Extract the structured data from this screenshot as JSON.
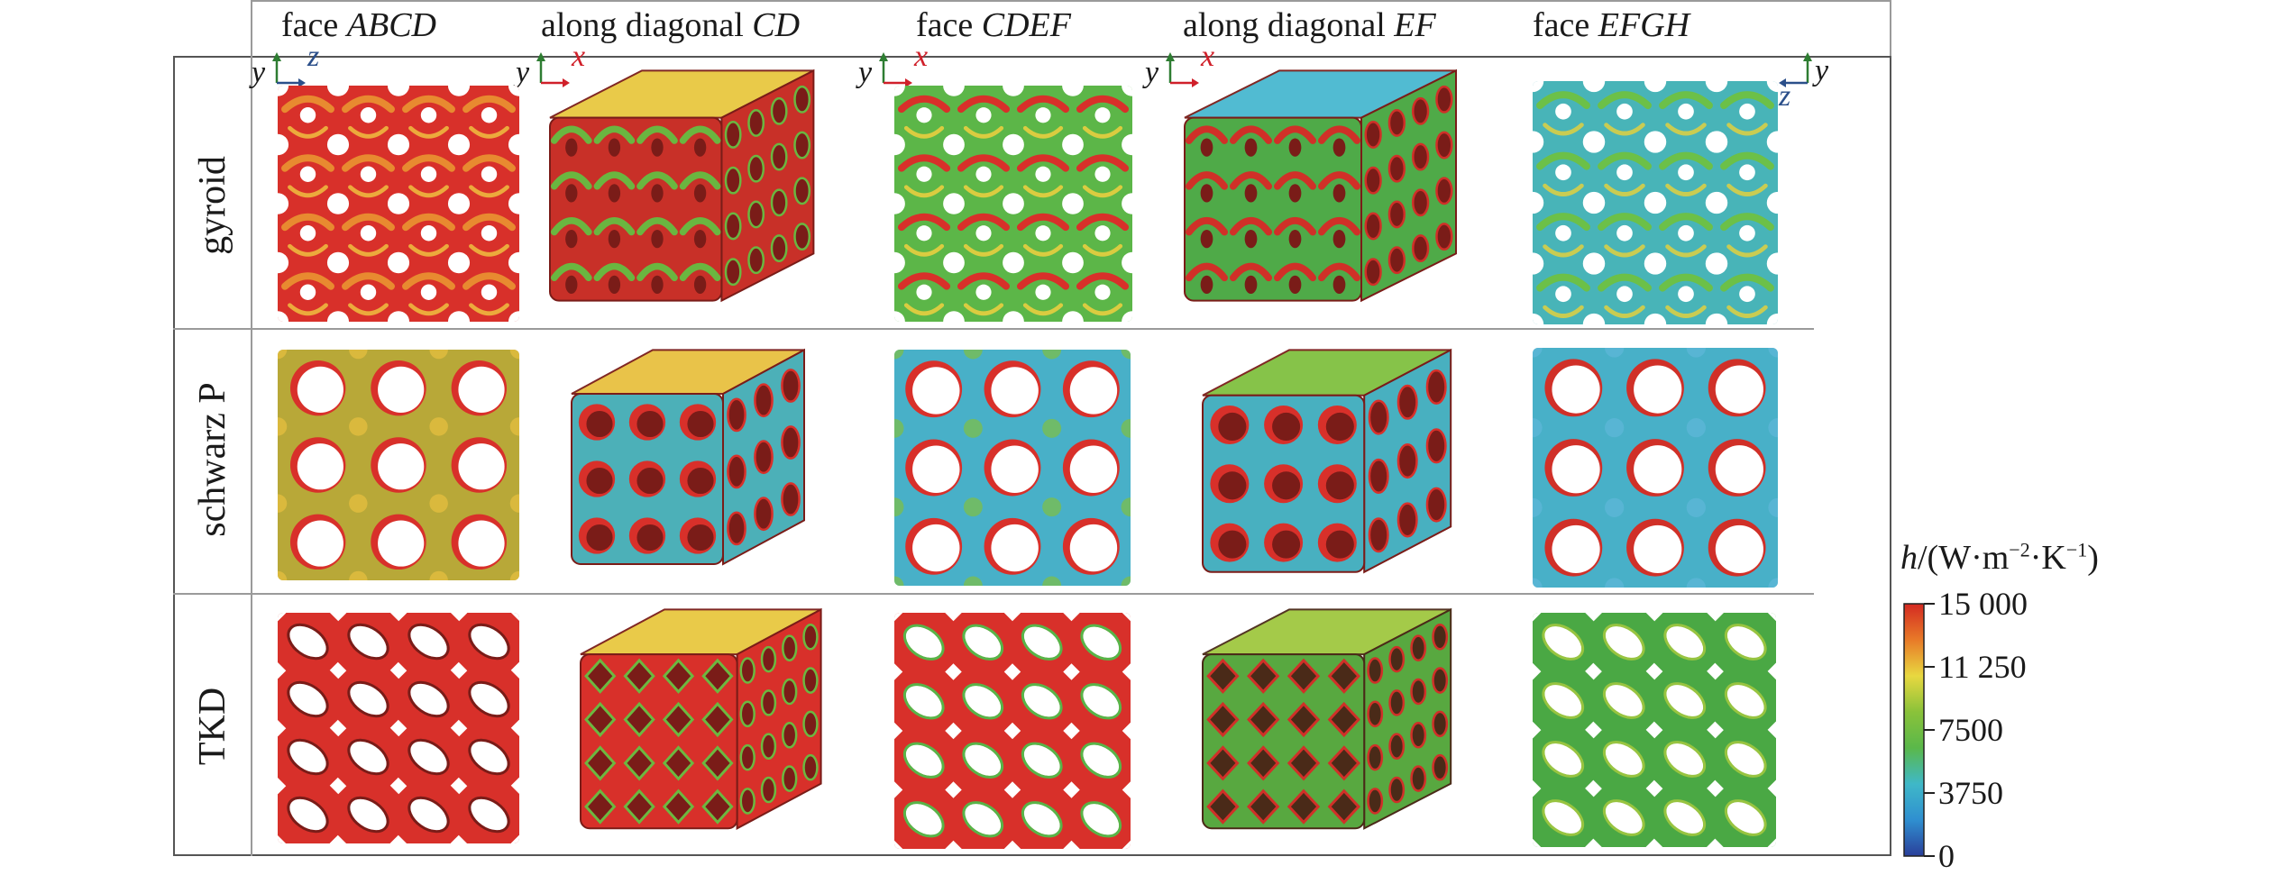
{
  "columns": [
    {
      "prefix": "face ",
      "emph": "ABCD"
    },
    {
      "prefix": "along diagonal ",
      "emph": "CD"
    },
    {
      "prefix": "face ",
      "emph": "CDEF"
    },
    {
      "prefix": "along diagonal ",
      "emph": "EF"
    },
    {
      "prefix": "face ",
      "emph": "EFGH"
    }
  ],
  "rows": [
    {
      "label": "gyroid"
    },
    {
      "label": "schwarz P"
    },
    {
      "label": "TKD"
    }
  ],
  "axes": [
    {
      "v": "y",
      "h": "z",
      "hColor": "#2b4f8a"
    },
    {
      "v": "y",
      "h": "x",
      "hColor": "#d0202a"
    },
    {
      "v": "y",
      "h": "x",
      "hColor": "#d0202a"
    },
    {
      "v": "y",
      "h": "x",
      "hColor": "#d0202a"
    },
    {
      "v": "y",
      "h": "z",
      "hColor": "#2b4f8a"
    }
  ],
  "colorbar": {
    "title": "h/(W·m⁻²·K⁻¹)",
    "title_var": "h",
    "title_rest_1": "/(W·m",
    "title_sup_1": "−2",
    "title_rest_2": "·K",
    "title_sup_2": "−1",
    "title_rest_3": ")",
    "min": 0,
    "max": 15000,
    "ticks": [
      {
        "value": 15000,
        "label": "15 000"
      },
      {
        "value": 11250,
        "label": "11 250"
      },
      {
        "value": 7500,
        "label": "7500"
      },
      {
        "value": 3750,
        "label": "3750"
      },
      {
        "value": 0,
        "label": "0"
      }
    ],
    "colors": [
      "#2a3f9a",
      "#2f8fd0",
      "#3fb8c8",
      "#5ab84a",
      "#8ac23a",
      "#e8d840",
      "#e87a28",
      "#d42a22"
    ]
  },
  "cell_colors": [
    [
      {
        "base": "#d8302a",
        "accent": "#e88a30",
        "hole": "#ffffff",
        "light": "#f0c040"
      },
      {
        "base": "#c83028",
        "accent": "#6ab640",
        "hole": "#7a1c18",
        "light": "#e8c840"
      },
      {
        "base": "#5cb648",
        "accent": "#d8302a",
        "hole": "#ffffff",
        "light": "#f0d040"
      },
      {
        "base": "#4faa48",
        "accent": "#d03028",
        "hole": "#7a1c18",
        "light": "#48b8d0"
      },
      {
        "base": "#48b4b8",
        "accent": "#6cc048",
        "hole": "#ffffff",
        "light": "#e0d040"
      }
    ],
    [
      {
        "base": "#b8a838",
        "accent": "#d8302a",
        "hole": "#ffffff",
        "light": "#e8c040"
      },
      {
        "base": "#4cb0b8",
        "accent": "#d8302a",
        "hole": "#7a1c18",
        "light": "#e8c040"
      },
      {
        "base": "#48b0c8",
        "accent": "#d8302a",
        "hole": "#ffffff",
        "light": "#80c040"
      },
      {
        "base": "#48b0c0",
        "accent": "#d8302a",
        "hole": "#7a1c18",
        "light": "#80c040"
      },
      {
        "base": "#48b0c8",
        "accent": "#d03028",
        "hole": "#ffffff",
        "light": "#60b8d8"
      }
    ],
    [
      {
        "base": "#d8302a",
        "accent": "#7a1c18",
        "hole": "#ffffff",
        "light": "#e06030"
      },
      {
        "base": "#d8302a",
        "accent": "#6cb840",
        "hole": "#7a1c18",
        "light": "#e8c840"
      },
      {
        "base": "#d8302a",
        "accent": "#58b448",
        "hole": "#ffffff",
        "light": "#e8c840"
      },
      {
        "base": "#58a840",
        "accent": "#d03028",
        "hole": "#4a2a18",
        "light": "#a0c840"
      },
      {
        "base": "#4aa844",
        "accent": "#98c440",
        "hole": "#ffffff",
        "light": "#e0d040"
      }
    ]
  ]
}
